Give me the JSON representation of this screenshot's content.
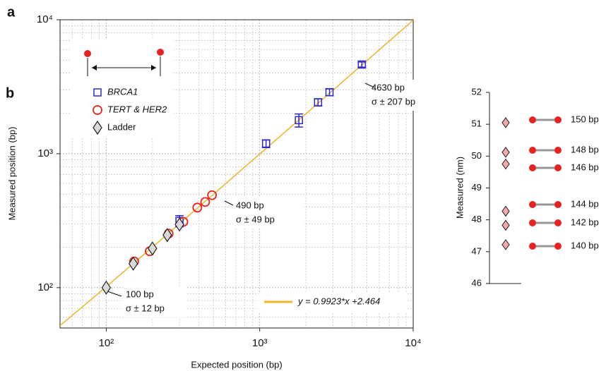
{
  "chart_data": [
    {
      "type": "scatter",
      "panel": "a",
      "xlabel": "Expected position (bp)",
      "ylabel": "Measured position (bp)",
      "xscale": "log",
      "yscale": "log",
      "xlim": [
        50,
        10000
      ],
      "ylim": [
        50,
        10000
      ],
      "xticks": [
        {
          "value": 100,
          "label": "10²"
        },
        {
          "value": 1000,
          "label": "10³"
        },
        {
          "value": 10000,
          "label": "10⁴"
        }
      ],
      "yticks": [
        {
          "value": 100,
          "label": "10²"
        },
        {
          "value": 1000,
          "label": "10³"
        },
        {
          "value": 10000,
          "label": "10⁴"
        }
      ],
      "grid": true,
      "legend": "upper left",
      "series": [
        {
          "name": "BRCA1",
          "color": "#2b2bd0",
          "marker": "square",
          "x": [
            300,
            1100,
            1800,
            2400,
            2850,
            4630
          ],
          "values": [
            315,
            1190,
            1780,
            2420,
            2880,
            4630
          ],
          "errors": [
            30,
            80,
            200,
            150,
            170,
            207
          ]
        },
        {
          "name": "TERT & HER2",
          "color": "#e8231f",
          "marker": "circle",
          "x": [
            152,
            192,
            255,
            318,
            392,
            441,
            489
          ],
          "values": [
            157,
            187,
            253,
            310,
            396,
            436,
            490
          ]
        },
        {
          "name": "Ladder",
          "color": "#222222",
          "marker": "diamond",
          "x": [
            100,
            150,
            200,
            250,
            300
          ],
          "values": [
            100,
            151,
            196,
            247,
            296
          ]
        }
      ],
      "fit": {
        "label": "y = 0.9923*x +2.464",
        "slope": 0.9923,
        "intercept": 2.464,
        "color": "#f0b42a"
      },
      "annotations": [
        [
          "100 bp",
          "σ ± 12 bp"
        ],
        [
          "490 bp",
          "σ ± 49 bp"
        ],
        [
          "4630 bp",
          "σ ± 207 bp"
        ]
      ]
    },
    {
      "type": "dot",
      "panel": "b",
      "ylabel": "Measured (nm)",
      "ylim": [
        46,
        52
      ],
      "yticks": [
        46,
        47,
        48,
        49,
        50,
        51,
        52
      ],
      "values": [
        51.05,
        50.12,
        49.75,
        48.27,
        47.83,
        47.22
      ],
      "labels": [
        "150 bp",
        "148 bp",
        "146 bp",
        "144 bp",
        "142 bp",
        "140 bp"
      ],
      "color": "#f4a8a8"
    }
  ]
}
